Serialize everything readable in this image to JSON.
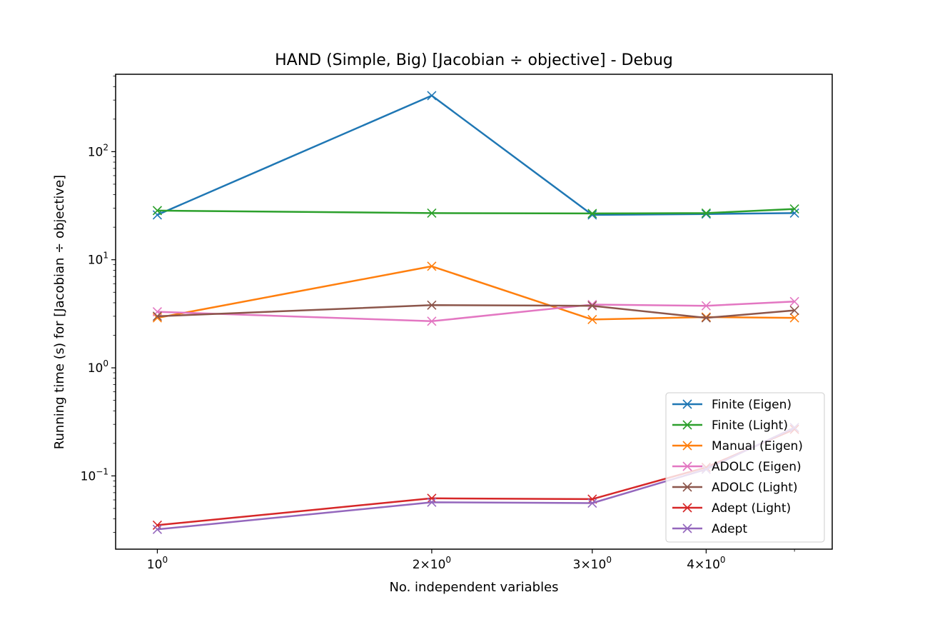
{
  "chart_data": {
    "type": "line",
    "title": "HAND (Simple, Big) [Jacobian ÷ objective] - Debug",
    "xlabel": "No. independent variables",
    "ylabel": "Running time (s) for [Jacobian ÷ objective]",
    "xscale": "log",
    "yscale": "log",
    "xlim": [
      0.9,
      5.5
    ],
    "ylim": [
      0.021,
      520
    ],
    "x": [
      1,
      2,
      3,
      4,
      5
    ],
    "x_tick_labels": [
      {
        "value": 1,
        "base": "10",
        "exp": "0"
      },
      {
        "value": 2,
        "base": "2×10",
        "exp": "0"
      },
      {
        "value": 3,
        "base": "3×10",
        "exp": "0"
      },
      {
        "value": 4,
        "base": "4×10",
        "exp": "0"
      }
    ],
    "y_tick_labels": [
      {
        "value": 0.1,
        "base": "10",
        "exp": "−1"
      },
      {
        "value": 1,
        "base": "10",
        "exp": "0"
      },
      {
        "value": 10,
        "base": "10",
        "exp": "1"
      },
      {
        "value": 100,
        "base": "10",
        "exp": "2"
      }
    ],
    "marker": "x",
    "grid": false,
    "legend_position": "lower-right",
    "series": [
      {
        "name": "Finite (Eigen)",
        "color": "#1f77b4",
        "values": [
          26,
          330,
          26,
          26.5,
          27
        ]
      },
      {
        "name": "Finite (Light)",
        "color": "#2ca02c",
        "values": [
          28.5,
          27,
          26.8,
          27,
          29.5
        ]
      },
      {
        "name": "Manual (Eigen)",
        "color": "#ff7f0e",
        "values": [
          2.9,
          8.7,
          2.8,
          2.95,
          2.9
        ]
      },
      {
        "name": "ADOLC (Eigen)",
        "color": "#e377c2",
        "values": [
          3.3,
          2.7,
          3.85,
          3.75,
          4.1
        ]
      },
      {
        "name": "ADOLC (Light)",
        "color": "#8c564b",
        "values": [
          3.0,
          3.8,
          3.75,
          2.9,
          3.4
        ]
      },
      {
        "name": "Adept (Light)",
        "color": "#d62728",
        "values": [
          0.035,
          0.062,
          0.061,
          0.12,
          0.27
        ]
      },
      {
        "name": "Adept",
        "color": "#9467bd",
        "values": [
          0.032,
          0.057,
          0.056,
          0.115,
          0.28
        ]
      }
    ]
  }
}
